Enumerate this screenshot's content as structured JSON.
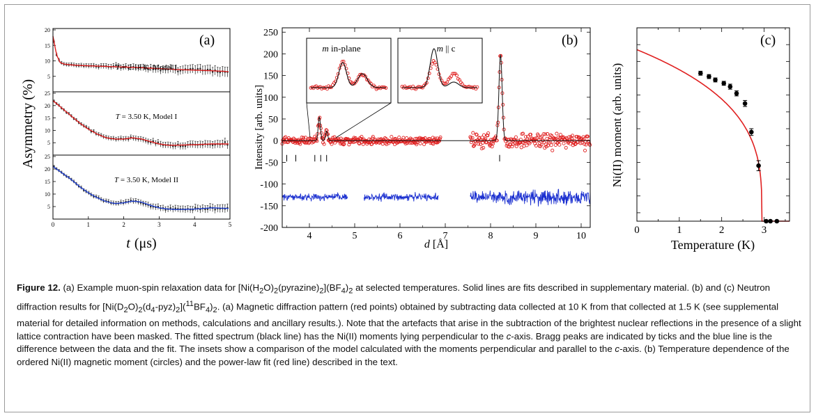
{
  "panel_a": {
    "label": "(a)",
    "ylabel_text": "Asymmetry",
    "ylabel_unit": "(%)",
    "xlabel_var": "t",
    "xlabel_unit": "(μs)",
    "subplots": [
      {
        "label_T": "T",
        "label_rest": " = 2.18 K, Model I",
        "color": "#e02020"
      },
      {
        "label_T": "T",
        "label_rest": " = 3.50 K, Model I",
        "color": "#e02020"
      },
      {
        "label_T": "T",
        "label_rest": " = 3.50 K, Model II",
        "color": "#2040d0"
      }
    ]
  },
  "panel_b": {
    "label": "(b)",
    "ylabel": "Intensity [arb. units]",
    "xlabel_var": "d",
    "xlabel_unit": " [Å]",
    "inset1_m": "m",
    "inset1_rest": " in-plane",
    "inset2_m": "m",
    "inset2_rest": " || c",
    "data_color": "#e02020",
    "fit_color": "#111111",
    "diff_color": "#1a2fd0"
  },
  "panel_c": {
    "label": "(c)",
    "ylabel": "Ni(II) moment (arb. units)",
    "xlabel": "Temperature (K)",
    "fit_color": "#e02020"
  },
  "chart_data": [
    {
      "type": "scatter",
      "panel": "(a)",
      "xlabel": "t (μs)",
      "ylabel": "Asymmetry (%)",
      "xlim": [
        0,
        5
      ],
      "x_ticks": [
        "0",
        "1",
        "2",
        "3",
        "4",
        "5"
      ],
      "series": [
        {
          "name": "T = 2.18 K, Model I",
          "ylim": [
            0,
            20
          ],
          "y_ticks": [
            "5",
            "10",
            "15",
            "20"
          ],
          "x": [
            0,
            0.1,
            0.2,
            0.3,
            0.5,
            0.8,
            1.0,
            1.5,
            2.0,
            2.5,
            3.0,
            3.5,
            4.0,
            4.5,
            5.0
          ],
          "y": [
            18,
            12,
            9.5,
            9,
            8.7,
            8.5,
            8.4,
            8.2,
            8.0,
            7.8,
            7.5,
            7.2,
            7.0,
            6.8,
            6.5
          ]
        },
        {
          "name": "T = 3.50 K, Model I",
          "ylim": [
            0,
            25
          ],
          "y_ticks": [
            "5",
            "10",
            "15",
            "20",
            "25"
          ],
          "x": [
            0,
            0.25,
            0.5,
            0.75,
            1.0,
            1.25,
            1.5,
            1.75,
            2.0,
            2.25,
            2.5,
            2.75,
            3.0,
            3.25,
            3.5,
            4.0,
            4.5,
            5.0
          ],
          "y": [
            22,
            19,
            16,
            13,
            10.5,
            8.5,
            7,
            6.5,
            6.5,
            7,
            6.5,
            5.5,
            4.5,
            4,
            4,
            4.2,
            4.5,
            4.5
          ]
        },
        {
          "name": "T = 3.50 K, Model II",
          "ylim": [
            0,
            25
          ],
          "y_ticks": [
            "5",
            "10",
            "15",
            "20",
            "25"
          ],
          "x": [
            0,
            0.25,
            0.5,
            0.75,
            1.0,
            1.25,
            1.5,
            1.75,
            2.0,
            2.25,
            2.5,
            2.75,
            3.0,
            3.25,
            3.5,
            4.0,
            4.5,
            5.0
          ],
          "y": [
            21,
            18.5,
            16,
            13,
            10.5,
            8.5,
            7,
            6.2,
            6.5,
            7.2,
            6.8,
            5.5,
            4.5,
            4,
            3.8,
            4,
            4.5,
            4.2
          ]
        }
      ]
    },
    {
      "type": "line",
      "panel": "(b)",
      "xlabel": "d [Å]",
      "ylabel": "Intensity [arb. units]",
      "xlim": [
        3.4,
        10.2
      ],
      "ylim": [
        -200,
        260
      ],
      "x_ticks": [
        "4",
        "5",
        "6",
        "7",
        "8",
        "9",
        "10"
      ],
      "y_ticks": [
        "-200",
        "-150",
        "-100",
        "-50",
        "0",
        "50",
        "100",
        "150",
        "200",
        "250"
      ],
      "data_segments": [
        [
          3.4,
          6.9
        ],
        [
          7.55,
          10.2
        ]
      ],
      "diff_segments": [
        [
          3.4,
          4.85
        ],
        [
          5.2,
          6.85
        ],
        [
          7.55,
          10.2
        ]
      ],
      "data_offset": 0,
      "diff_offset": -130,
      "peaks": [
        {
          "d": 4.22,
          "height": 55,
          "width": 0.035
        },
        {
          "d": 4.38,
          "height": 22,
          "width": 0.035
        },
        {
          "d": 8.22,
          "height": 198,
          "width": 0.05
        }
      ],
      "bragg_ticks": [
        3.5,
        3.7,
        4.12,
        4.25,
        4.38,
        8.2
      ]
    },
    {
      "type": "scatter",
      "panel": "(c)",
      "xlabel": "Temperature (K)",
      "ylabel": "Ni(II) moment (arb. units)",
      "xlim": [
        0,
        3.6
      ],
      "ylim": [
        0,
        1.15
      ],
      "x_ticks": [
        "0",
        "0.5",
        "1",
        "1.5",
        "2",
        "2.5",
        "3",
        "3.5"
      ],
      "x": [
        1.5,
        1.7,
        1.85,
        2.05,
        2.2,
        2.35,
        2.55,
        2.7,
        2.87,
        3.05,
        3.15,
        3.3
      ],
      "y": [
        0.88,
        0.86,
        0.84,
        0.82,
        0.8,
        0.76,
        0.7,
        0.53,
        0.33,
        0.0,
        0.0,
        0.0
      ],
      "y_err": [
        0.012,
        0.012,
        0.012,
        0.012,
        0.015,
        0.015,
        0.018,
        0.02,
        0.03,
        0.0,
        0.0,
        0.0
      ],
      "fit": {
        "model": "power-law",
        "Tc": 2.95,
        "amplitude": 1.02
      }
    }
  ],
  "caption": {
    "figure_label": "Figure 12.",
    "part1": " (a) Example muon-spin relaxation data for [Ni(H",
    "sub_a": "2",
    "part2": "O)",
    "sub_b": "2",
    "part3": "(pyrazine)",
    "sub_c": "2",
    "part4": "](BF",
    "sub_d": "4",
    "part5": ")",
    "sub_e": "2",
    "part6": " at selected temperatures. Solid lines are fits described in supplementary material. (b) and (c) Neutron diffraction results for [Ni(D",
    "sub_f": "2",
    "part7": "O)",
    "sub_g": "2",
    "part8": "(d",
    "sub_h": "4",
    "part9": "-pyz)",
    "sub_i": "2",
    "part10": "](",
    "sup_j": "11",
    "part11": "BF",
    "sub_k": "4",
    "part12": ")",
    "sub_l": "2",
    "part13": ". (a) Magnetic diffraction pattern (red points) obtained by subtracting data collected at 10  K from that collected at 1.5  K (see supplemental material for detailed information on methods, calculations and ancillary results.). Note that the artefacts that arise in the subtraction of the brightest nuclear reflections in the presence of a slight lattice contraction have been masked. The fitted spectrum (black line) has the Ni(II) moments lying perpendicular to the ",
    "italic_c1": "c",
    "part14": "-axis. Bragg peaks are indicated by ticks and the blue line is the difference between the data and the fit. The insets show a comparison of the model calculated with the moments perpendicular and parallel to the ",
    "italic_c2": "c",
    "part15": "-axis. (b) Temperature dependence of the ordered Ni(II) magnetic moment (circles) and the power-law fit (red line) described in the text."
  }
}
